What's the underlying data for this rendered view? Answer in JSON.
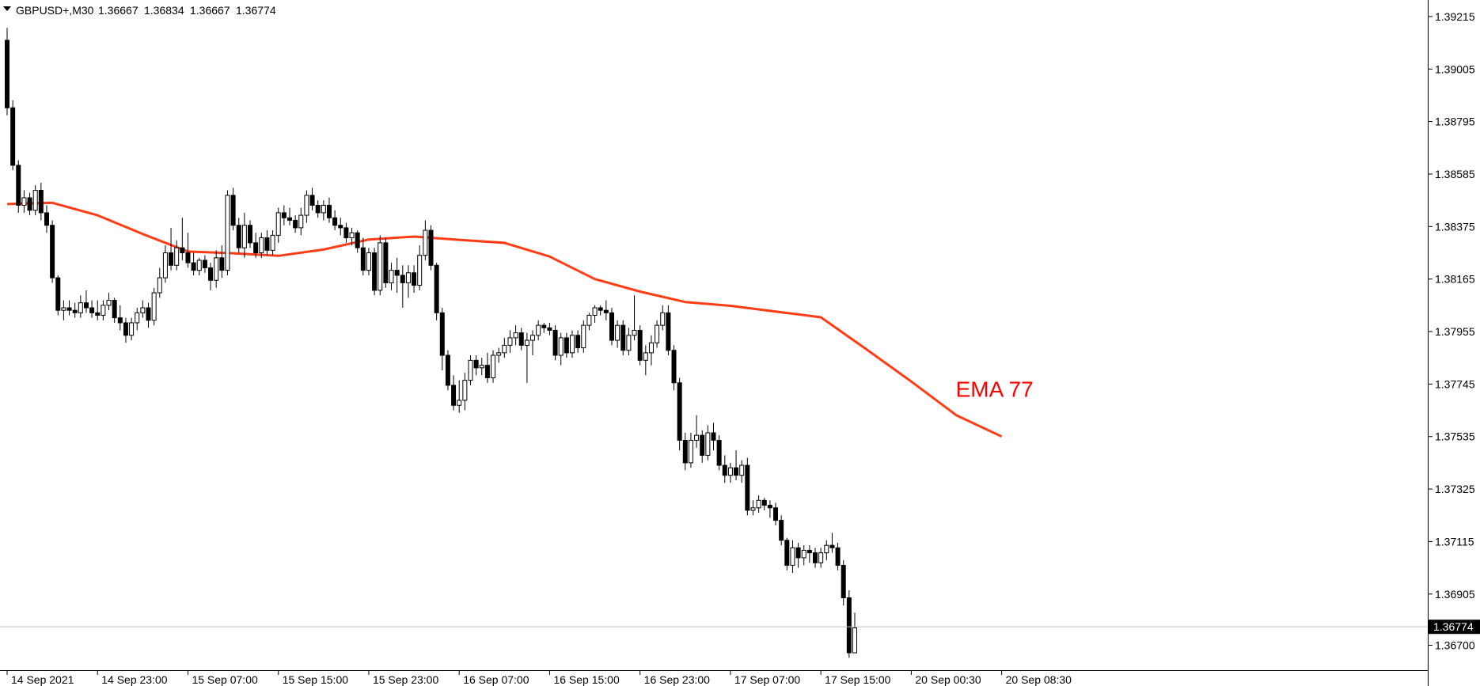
{
  "header": {
    "symbol": "GBPUSD+,M30",
    "open": "1.36667",
    "high": "1.36834",
    "low": "1.36667",
    "close": "1.36774"
  },
  "chart_data": {
    "type": "candlestick",
    "symbol": "GBPUSD+",
    "timeframe": "M30",
    "ylim": [
      1.3661,
      1.3924
    ],
    "y_ticks": [
      "1.39215",
      "1.39005",
      "1.38795",
      "1.38585",
      "1.38375",
      "1.38165",
      "1.37955",
      "1.37745",
      "1.37535",
      "1.37325",
      "1.37115",
      "1.36905",
      "1.36700"
    ],
    "x_ticks": [
      {
        "label": "14 Sep 2021",
        "bar": 0
      },
      {
        "label": "14 Sep 23:00",
        "bar": 16
      },
      {
        "label": "15 Sep 07:00",
        "bar": 32
      },
      {
        "label": "15 Sep 15:00",
        "bar": 48
      },
      {
        "label": "15 Sep 23:00",
        "bar": 64
      },
      {
        "label": "16 Sep 07:00",
        "bar": 80
      },
      {
        "label": "16 Sep 15:00",
        "bar": 96
      },
      {
        "label": "16 Sep 23:00",
        "bar": 112
      },
      {
        "label": "17 Sep 07:00",
        "bar": 128
      },
      {
        "label": "17 Sep 15:00",
        "bar": 144
      },
      {
        "label": "20 Sep 00:30",
        "bar": 160
      },
      {
        "label": "20 Sep 08:30",
        "bar": 176
      }
    ],
    "current_price": "1.36774",
    "colors": {
      "bull": "#ffffff",
      "bear": "#000000",
      "wick": "#000000",
      "ema": "#ff3c14",
      "ema_label": "#ff0000",
      "price_line": "#c0c0c0"
    },
    "indicators": [
      {
        "name": "EMA 77",
        "label": "EMA 77",
        "points": [
          [
            0,
            1.38465
          ],
          [
            8,
            1.3847
          ],
          [
            16,
            1.3842
          ],
          [
            24,
            1.38345
          ],
          [
            32,
            1.38275
          ],
          [
            40,
            1.38268
          ],
          [
            48,
            1.38258
          ],
          [
            56,
            1.38283
          ],
          [
            64,
            1.38323
          ],
          [
            72,
            1.38335
          ],
          [
            80,
            1.38322
          ],
          [
            88,
            1.3831
          ],
          [
            96,
            1.38255
          ],
          [
            104,
            1.38165
          ],
          [
            112,
            1.38115
          ],
          [
            120,
            1.38073
          ],
          [
            128,
            1.38058
          ],
          [
            136,
            1.38035
          ],
          [
            144,
            1.38012
          ],
          [
            152,
            1.37885
          ],
          [
            160,
            1.37755
          ],
          [
            168,
            1.3762
          ],
          [
            176,
            1.37535
          ]
        ]
      }
    ],
    "candles": [
      [
        1.3912,
        1.3917,
        1.3882,
        1.3885
      ],
      [
        1.3885,
        1.3888,
        1.386,
        1.3862
      ],
      [
        1.3862,
        1.3864,
        1.3843,
        1.3846
      ],
      [
        1.3846,
        1.3852,
        1.3843,
        1.3849
      ],
      [
        1.3849,
        1.3851,
        1.3842,
        1.3844
      ],
      [
        1.3844,
        1.3854,
        1.3842,
        1.3852
      ],
      [
        1.3852,
        1.3855,
        1.384,
        1.3843
      ],
      [
        1.3843,
        1.3846,
        1.3835,
        1.3838
      ],
      [
        1.3838,
        1.384,
        1.3815,
        1.3817
      ],
      [
        1.3817,
        1.3818,
        1.3802,
        1.3804
      ],
      [
        1.3804,
        1.3808,
        1.38,
        1.3805
      ],
      [
        1.3805,
        1.3808,
        1.3802,
        1.3804
      ],
      [
        1.3804,
        1.3807,
        1.3801,
        1.3803
      ],
      [
        1.3803,
        1.381,
        1.3801,
        1.3807
      ],
      [
        1.3807,
        1.3812,
        1.3803,
        1.3805
      ],
      [
        1.3805,
        1.3808,
        1.3801,
        1.3803
      ],
      [
        1.3803,
        1.3808,
        1.38,
        1.3802
      ],
      [
        1.3802,
        1.3808,
        1.38,
        1.3806
      ],
      [
        1.3806,
        1.3811,
        1.3804,
        1.3808
      ],
      [
        1.3808,
        1.3809,
        1.3799,
        1.3801
      ],
      [
        1.3801,
        1.3806,
        1.3796,
        1.3799
      ],
      [
        1.3799,
        1.3801,
        1.3791,
        1.3794
      ],
      [
        1.3794,
        1.3801,
        1.3792,
        1.3799
      ],
      [
        1.3799,
        1.3805,
        1.3796,
        1.3803
      ],
      [
        1.3803,
        1.3808,
        1.3801,
        1.3805
      ],
      [
        1.3805,
        1.3807,
        1.3797,
        1.38
      ],
      [
        1.38,
        1.3813,
        1.3798,
        1.3811
      ],
      [
        1.3811,
        1.3821,
        1.3809,
        1.3817
      ],
      [
        1.3817,
        1.383,
        1.3815,
        1.3827
      ],
      [
        1.3827,
        1.3837,
        1.382,
        1.3822
      ],
      [
        1.3822,
        1.3832,
        1.382,
        1.3829
      ],
      [
        1.3829,
        1.3841,
        1.3824,
        1.3827
      ],
      [
        1.3827,
        1.3835,
        1.3821,
        1.3823
      ],
      [
        1.3823,
        1.3827,
        1.3818,
        1.382
      ],
      [
        1.382,
        1.3825,
        1.3818,
        1.3824
      ],
      [
        1.3824,
        1.3826,
        1.3819,
        1.3821
      ],
      [
        1.3821,
        1.3823,
        1.3812,
        1.3816
      ],
      [
        1.3816,
        1.3828,
        1.3813,
        1.3825
      ],
      [
        1.3825,
        1.383,
        1.3817,
        1.382
      ],
      [
        1.382,
        1.3852,
        1.3818,
        1.385
      ],
      [
        1.385,
        1.3853,
        1.3836,
        1.3838
      ],
      [
        1.3838,
        1.3841,
        1.3827,
        1.3829
      ],
      [
        1.3829,
        1.3843,
        1.3825,
        1.3838
      ],
      [
        1.3838,
        1.384,
        1.3829,
        1.3831
      ],
      [
        1.3831,
        1.3835,
        1.3825,
        1.3827
      ],
      [
        1.3827,
        1.3835,
        1.3825,
        1.3833
      ],
      [
        1.3833,
        1.3836,
        1.3826,
        1.3828
      ],
      [
        1.3828,
        1.3836,
        1.3826,
        1.3834
      ],
      [
        1.3834,
        1.3845,
        1.3831,
        1.3843
      ],
      [
        1.3843,
        1.3846,
        1.3838,
        1.3841
      ],
      [
        1.3841,
        1.3845,
        1.3838,
        1.384
      ],
      [
        1.384,
        1.3842,
        1.3835,
        1.3837
      ],
      [
        1.3837,
        1.3845,
        1.3834,
        1.3842
      ],
      [
        1.3842,
        1.3852,
        1.3839,
        1.385
      ],
      [
        1.385,
        1.3853,
        1.3844,
        1.3846
      ],
      [
        1.3846,
        1.3848,
        1.3841,
        1.3843
      ],
      [
        1.3843,
        1.3848,
        1.384,
        1.3846
      ],
      [
        1.3846,
        1.3849,
        1.3839,
        1.3841
      ],
      [
        1.3841,
        1.3844,
        1.3836,
        1.3838
      ],
      [
        1.3838,
        1.3841,
        1.3834,
        1.3837
      ],
      [
        1.3837,
        1.3839,
        1.3831,
        1.3833
      ],
      [
        1.3833,
        1.3837,
        1.383,
        1.3835
      ],
      [
        1.3835,
        1.3836,
        1.3827,
        1.3829
      ],
      [
        1.3829,
        1.3833,
        1.3818,
        1.382
      ],
      [
        1.382,
        1.3829,
        1.3818,
        1.3827
      ],
      [
        1.3827,
        1.3829,
        1.381,
        1.3812
      ],
      [
        1.3812,
        1.3834,
        1.381,
        1.3831
      ],
      [
        1.3831,
        1.3833,
        1.3813,
        1.3815
      ],
      [
        1.3815,
        1.3823,
        1.3812,
        1.382
      ],
      [
        1.382,
        1.3825,
        1.3811,
        1.3818
      ],
      [
        1.3818,
        1.3822,
        1.3805,
        1.3815
      ],
      [
        1.3815,
        1.3822,
        1.3809,
        1.3819
      ],
      [
        1.3819,
        1.3822,
        1.3811,
        1.3814
      ],
      [
        1.3814,
        1.383,
        1.3812,
        1.3826
      ],
      [
        1.3826,
        1.384,
        1.3824,
        1.3836
      ],
      [
        1.3836,
        1.3838,
        1.382,
        1.3822
      ],
      [
        1.3822,
        1.3823,
        1.38,
        1.3803
      ],
      [
        1.3803,
        1.3805,
        1.378,
        1.3786
      ],
      [
        1.3786,
        1.3788,
        1.3772,
        1.3774
      ],
      [
        1.3774,
        1.3778,
        1.3764,
        1.3766
      ],
      [
        1.3766,
        1.3776,
        1.3763,
        1.3768
      ],
      [
        1.3768,
        1.3779,
        1.3764,
        1.3776
      ],
      [
        1.3776,
        1.3786,
        1.3774,
        1.3784
      ],
      [
        1.3784,
        1.3786,
        1.3778,
        1.3781
      ],
      [
        1.3781,
        1.3785,
        1.3778,
        1.3782
      ],
      [
        1.3782,
        1.3787,
        1.3775,
        1.3777
      ],
      [
        1.3777,
        1.3788,
        1.3775,
        1.3786
      ],
      [
        1.3786,
        1.3789,
        1.3783,
        1.3787
      ],
      [
        1.3787,
        1.3793,
        1.3785,
        1.379
      ],
      [
        1.379,
        1.3796,
        1.3787,
        1.3793
      ],
      [
        1.3793,
        1.3798,
        1.379,
        1.3795
      ],
      [
        1.3795,
        1.3797,
        1.3788,
        1.379
      ],
      [
        1.379,
        1.3795,
        1.3775,
        1.3792
      ],
      [
        1.3792,
        1.3796,
        1.3786,
        1.3794
      ],
      [
        1.3794,
        1.38,
        1.3792,
        1.3798
      ],
      [
        1.3798,
        1.3799,
        1.3795,
        1.3797
      ],
      [
        1.3797,
        1.3799,
        1.3794,
        1.3796
      ],
      [
        1.3796,
        1.3798,
        1.3784,
        1.3786
      ],
      [
        1.3786,
        1.3795,
        1.3782,
        1.3793
      ],
      [
        1.3793,
        1.3795,
        1.3785,
        1.3787
      ],
      [
        1.3787,
        1.3796,
        1.3785,
        1.3794
      ],
      [
        1.3794,
        1.3796,
        1.3787,
        1.3789
      ],
      [
        1.3789,
        1.38,
        1.3787,
        1.3798
      ],
      [
        1.3798,
        1.3803,
        1.3796,
        1.3802
      ],
      [
        1.3802,
        1.3806,
        1.3799,
        1.3805
      ],
      [
        1.3805,
        1.3806,
        1.3802,
        1.3804
      ],
      [
        1.3804,
        1.3808,
        1.38,
        1.3803
      ],
      [
        1.3803,
        1.3805,
        1.379,
        1.3792
      ],
      [
        1.3792,
        1.38,
        1.3789,
        1.3798
      ],
      [
        1.3798,
        1.38,
        1.3786,
        1.3788
      ],
      [
        1.3788,
        1.3797,
        1.3786,
        1.3794
      ],
      [
        1.3794,
        1.381,
        1.3792,
        1.3796
      ],
      [
        1.3796,
        1.3798,
        1.3782,
        1.3784
      ],
      [
        1.3784,
        1.379,
        1.3778,
        1.3787
      ],
      [
        1.3787,
        1.3794,
        1.3782,
        1.3791
      ],
      [
        1.3791,
        1.38,
        1.3789,
        1.3798
      ],
      [
        1.3798,
        1.3806,
        1.3796,
        1.3803
      ],
      [
        1.3803,
        1.3806,
        1.3786,
        1.3788
      ],
      [
        1.3788,
        1.379,
        1.3772,
        1.3775
      ],
      [
        1.3775,
        1.3777,
        1.3748,
        1.3752
      ],
      [
        1.3752,
        1.3755,
        1.374,
        1.3743
      ],
      [
        1.3743,
        1.3755,
        1.3741,
        1.3752
      ],
      [
        1.3752,
        1.3762,
        1.3749,
        1.3754
      ],
      [
        1.3754,
        1.3756,
        1.3743,
        1.3746
      ],
      [
        1.3746,
        1.3758,
        1.3744,
        1.3755
      ],
      [
        1.3755,
        1.3759,
        1.3748,
        1.3752
      ],
      [
        1.3752,
        1.3754,
        1.374,
        1.3742
      ],
      [
        1.3742,
        1.3746,
        1.3735,
        1.3738
      ],
      [
        1.3738,
        1.3743,
        1.3735,
        1.3741
      ],
      [
        1.3741,
        1.3748,
        1.3736,
        1.3738
      ],
      [
        1.3738,
        1.3744,
        1.3735,
        1.3742
      ],
      [
        1.3742,
        1.3745,
        1.3722,
        1.3724
      ],
      [
        1.3724,
        1.3728,
        1.3722,
        1.3725
      ],
      [
        1.3725,
        1.373,
        1.3723,
        1.3728
      ],
      [
        1.3728,
        1.3729,
        1.3724,
        1.3726
      ],
      [
        1.3726,
        1.3728,
        1.3721,
        1.3725
      ],
      [
        1.3725,
        1.3727,
        1.3718,
        1.372
      ],
      [
        1.372,
        1.3722,
        1.371,
        1.3712
      ],
      [
        1.3712,
        1.3713,
        1.37,
        1.3702
      ],
      [
        1.3702,
        1.3712,
        1.3699,
        1.3709
      ],
      [
        1.3709,
        1.3711,
        1.3701,
        1.3705
      ],
      [
        1.3705,
        1.371,
        1.3702,
        1.3708
      ],
      [
        1.3708,
        1.371,
        1.3703,
        1.3707
      ],
      [
        1.3707,
        1.3709,
        1.3701,
        1.3703
      ],
      [
        1.3703,
        1.3709,
        1.3701,
        1.3707
      ],
      [
        1.3707,
        1.3712,
        1.3704,
        1.371
      ],
      [
        1.371,
        1.3715,
        1.3707,
        1.3709
      ],
      [
        1.3709,
        1.3711,
        1.37,
        1.3702
      ],
      [
        1.3702,
        1.3704,
        1.3686,
        1.3689
      ],
      [
        1.3689,
        1.3692,
        1.3665,
        1.3667
      ],
      [
        1.3667,
        1.3683,
        1.3667,
        1.3677
      ]
    ]
  }
}
